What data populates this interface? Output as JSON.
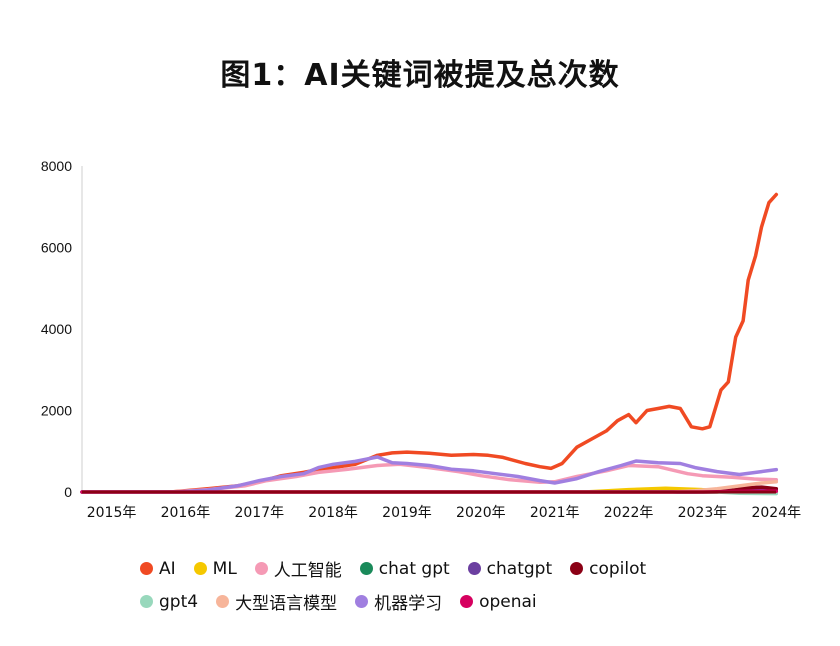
{
  "chart_data": {
    "type": "line",
    "title": "图1：AI关键词被提及总次数",
    "xlabel": "",
    "ylabel": "",
    "ylim": [
      0,
      8000
    ],
    "yticks": [
      0,
      2000,
      4000,
      6000,
      8000
    ],
    "xlim": [
      2014.6,
      2024.05
    ],
    "xticks": [
      {
        "value": 2015,
        "label": "2015年"
      },
      {
        "value": 2016,
        "label": "2016年"
      },
      {
        "value": 2017,
        "label": "2017年"
      },
      {
        "value": 2018,
        "label": "2018年"
      },
      {
        "value": 2019,
        "label": "2019年"
      },
      {
        "value": 2020,
        "label": "2020年"
      },
      {
        "value": 2021,
        "label": "2021年"
      },
      {
        "value": 2022,
        "label": "2022年"
      },
      {
        "value": 2023,
        "label": "2023年"
      },
      {
        "value": 2024,
        "label": "2024年"
      }
    ],
    "grid": false,
    "legend_position": "bottom",
    "series": [
      {
        "name": "AI",
        "color": "#f04a23",
        "x": [
          2014.6,
          2015.8,
          2016.3,
          2016.7,
          2017.0,
          2017.3,
          2017.6,
          2017.8,
          2018.0,
          2018.3,
          2018.6,
          2018.8,
          2019.0,
          2019.3,
          2019.6,
          2019.9,
          2020.1,
          2020.3,
          2020.6,
          2020.8,
          2020.95,
          2021.1,
          2021.3,
          2021.5,
          2021.7,
          2021.85,
          2022.0,
          2022.1,
          2022.25,
          2022.4,
          2022.55,
          2022.7,
          2022.85,
          2023.0,
          2023.1,
          2023.25,
          2023.35,
          2023.45,
          2023.55,
          2023.62,
          2023.72,
          2023.8,
          2023.9,
          2024.0
        ],
        "y": [
          0,
          0,
          80,
          150,
          250,
          400,
          480,
          550,
          600,
          680,
          900,
          960,
          980,
          950,
          900,
          920,
          900,
          850,
          700,
          620,
          580,
          700,
          1100,
          1300,
          1500,
          1750,
          1900,
          1700,
          2000,
          2050,
          2100,
          2050,
          1600,
          1550,
          1600,
          2500,
          2700,
          3800,
          4200,
          5200,
          5800,
          6500,
          7100,
          7300
        ]
      },
      {
        "name": "ML",
        "color": "#f5c800",
        "x": [
          2014.6,
          2021.4,
          2021.6,
          2022.0,
          2022.5,
          2023.0,
          2023.5,
          2024.0
        ],
        "y": [
          0,
          0,
          20,
          60,
          90,
          60,
          50,
          40
        ]
      },
      {
        "name": "人工智能",
        "color": "#f59ab5",
        "x": [
          2014.6,
          2015.8,
          2016.3,
          2016.8,
          2017.1,
          2017.5,
          2017.8,
          2018.2,
          2018.6,
          2018.9,
          2019.3,
          2019.7,
          2020.0,
          2020.4,
          2020.8,
          2021.0,
          2021.3,
          2021.7,
          2022.0,
          2022.4,
          2022.8,
          2023.0,
          2023.4,
          2023.7,
          2024.0
        ],
        "y": [
          0,
          0,
          60,
          150,
          280,
          380,
          480,
          560,
          650,
          680,
          600,
          500,
          400,
          300,
          240,
          250,
          380,
          520,
          650,
          620,
          450,
          400,
          360,
          320,
          300
        ]
      },
      {
        "name": "chat gpt",
        "color": "#1a8a5a",
        "x": [
          2014.6,
          2023.0,
          2023.3,
          2024.0
        ],
        "y": [
          0,
          0,
          10,
          20
        ]
      },
      {
        "name": "chatgpt",
        "color": "#6b3fa0",
        "x": [
          2014.6,
          2022.9,
          2023.2,
          2023.5,
          2024.0
        ],
        "y": [
          0,
          0,
          30,
          50,
          60
        ]
      },
      {
        "name": "copilot",
        "color": "#8b0015",
        "x": [
          2014.6,
          2023.2,
          2023.4,
          2023.6,
          2023.8,
          2024.0
        ],
        "y": [
          0,
          0,
          40,
          100,
          120,
          80
        ]
      },
      {
        "name": "gpt4",
        "color": "#98d8bc",
        "x": [
          2014.6,
          2023.2,
          2023.5,
          2024.0
        ],
        "y": [
          0,
          0,
          -30,
          -40
        ]
      },
      {
        "name": "大型语言模型",
        "color": "#f7b59a",
        "x": [
          2014.6,
          2022.6,
          2022.9,
          2023.2,
          2023.5,
          2023.8,
          2024.0
        ],
        "y": [
          0,
          0,
          30,
          80,
          150,
          220,
          250
        ]
      },
      {
        "name": "机器学习",
        "color": "#a07fe0",
        "x": [
          2014.6,
          2015.9,
          2016.3,
          2016.7,
          2017.0,
          2017.3,
          2017.6,
          2017.8,
          2018.0,
          2018.3,
          2018.6,
          2018.8,
          2019.0,
          2019.3,
          2019.6,
          2019.9,
          2020.2,
          2020.5,
          2020.8,
          2021.0,
          2021.3,
          2021.6,
          2021.9,
          2022.1,
          2022.4,
          2022.7,
          2022.9,
          2023.2,
          2023.5,
          2023.8,
          2024.0
        ],
        "y": [
          0,
          0,
          50,
          150,
          280,
          380,
          450,
          600,
          680,
          750,
          860,
          720,
          700,
          650,
          560,
          520,
          450,
          380,
          280,
          220,
          330,
          500,
          650,
          760,
          720,
          700,
          600,
          500,
          430,
          500,
          550
        ]
      },
      {
        "name": "openai",
        "color": "#d6005f",
        "x": [
          2014.6,
          2023.0,
          2023.5,
          2024.0
        ],
        "y": [
          0,
          0,
          15,
          20
        ]
      }
    ]
  }
}
